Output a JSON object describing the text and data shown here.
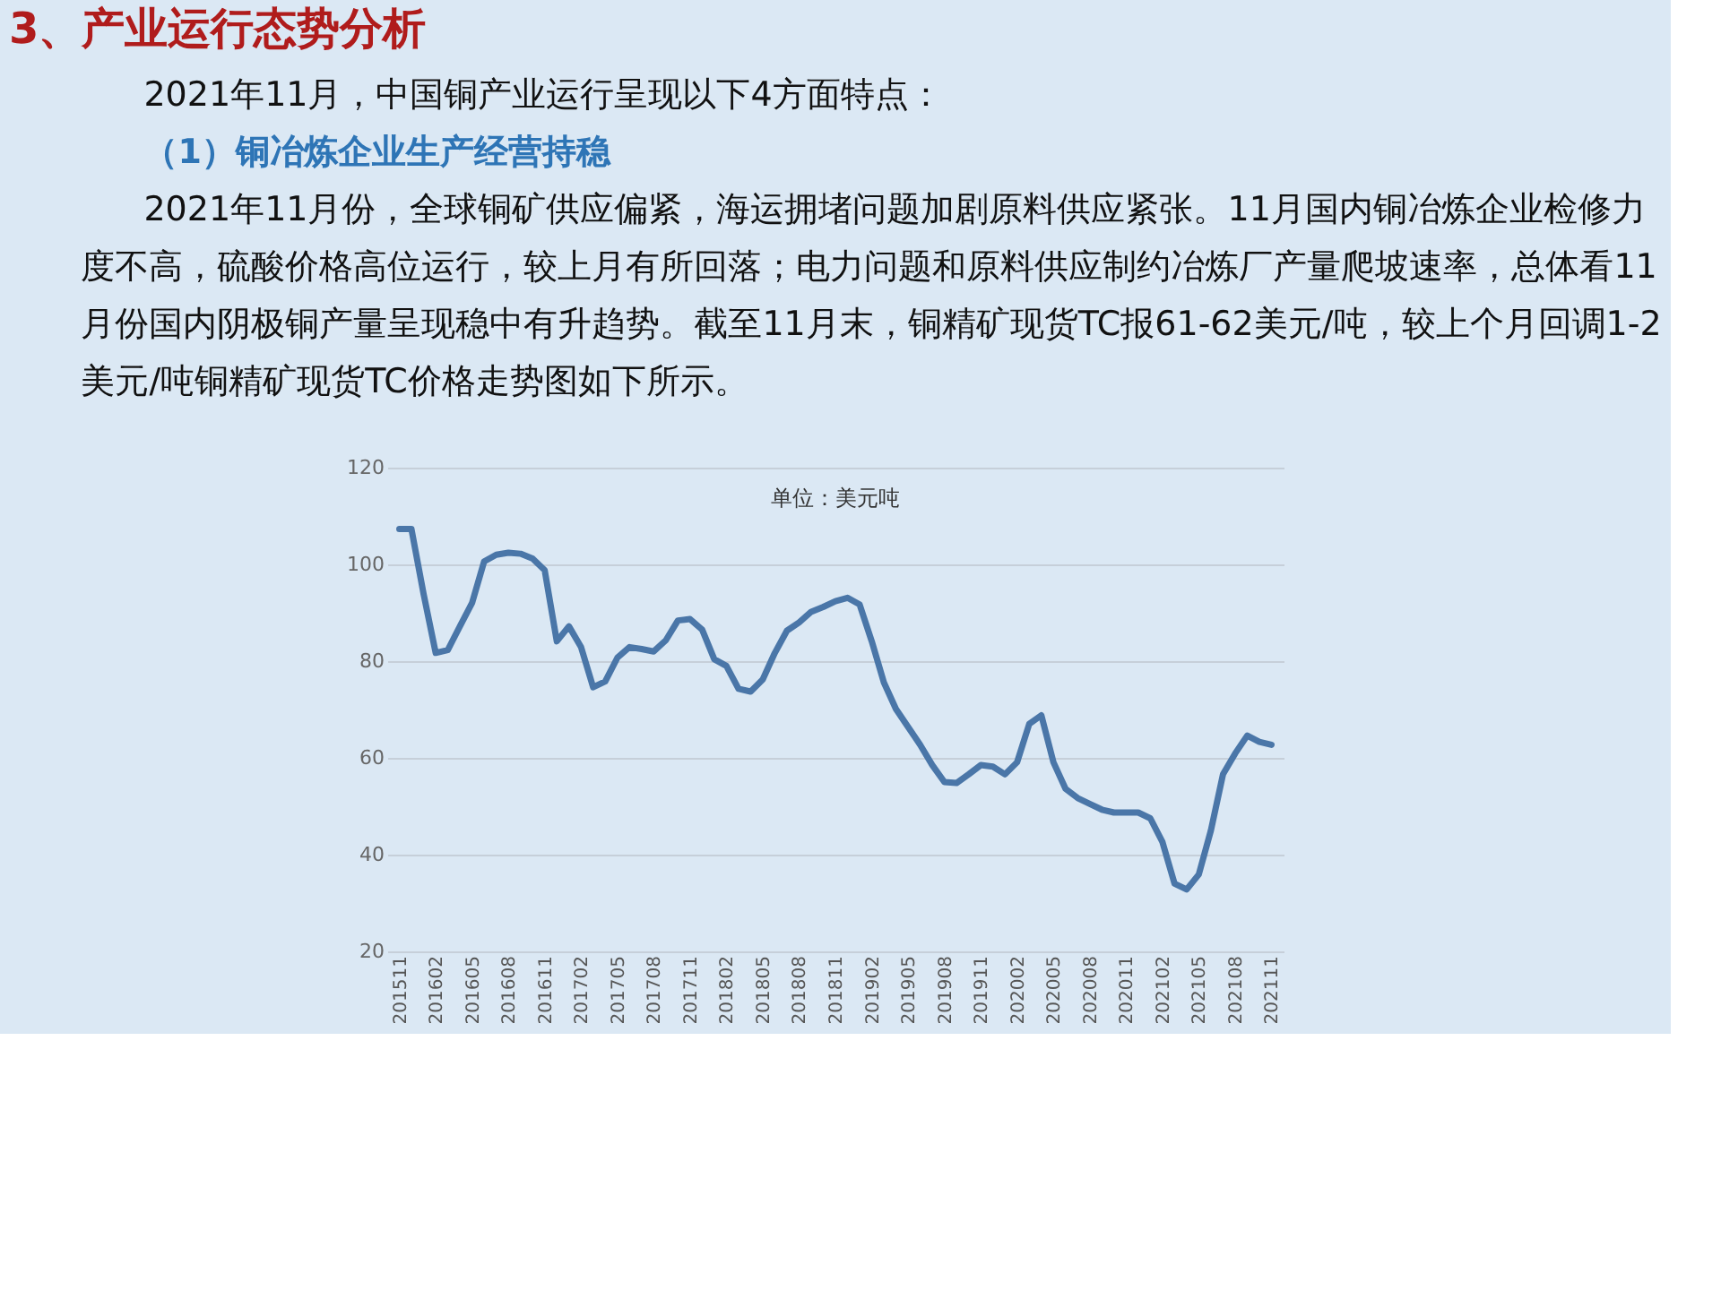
{
  "chart_data": {
    "type": "line",
    "title": "3、产业运行态势分析",
    "subtitle": "单位：美元吨",
    "annotations": [
      "2021年11月，中国铜产业运行呈现以下4方面特点：",
      "（1）铜冶炼企业生产经营持稳",
      "2021年11月份，全球铜矿供应偏紧，海运拥堵问题加剧原料供应紧张。11月国内铜冶炼企业检修力度不高，硫酸价格高位运行，较上月有所回落；电力问题和原料供应制约冶炼厂产量爬坡速率，总体看11月份国内阴极铜产量呈现稳中有升趋势。截至11月末，铜精矿现货TC报61-62美元/吨，较上个月回调1-2美元/吨铜精矿现货TC价格走势图如下所示。"
    ],
    "categories": [
      "201511",
      null,
      null,
      "201602",
      null,
      null,
      "201605",
      null,
      null,
      "201608",
      null,
      null,
      "201611",
      null,
      null,
      "201702",
      null,
      null,
      "201705",
      null,
      null,
      "201708",
      null,
      null,
      "201711",
      null,
      null,
      "201802",
      null,
      null,
      "201805",
      null,
      null,
      "201808",
      null,
      null,
      "201811",
      null,
      null,
      "201902",
      null,
      null,
      "201905",
      null,
      null,
      "201908",
      null,
      null,
      "201911",
      null,
      null,
      "202002",
      null,
      null,
      "202005",
      null,
      null,
      "202008",
      null,
      null,
      "202011",
      null,
      null,
      "202102",
      null,
      null,
      "202105",
      null,
      null,
      "202108",
      null,
      null,
      "202111"
    ],
    "series": [
      {
        "color": "#4a76a8",
        "values": [
          107.3,
          107.3,
          93.9,
          81.7,
          82.3,
          87.2,
          92.0,
          100.6,
          102.0,
          102.4,
          102.2,
          101.2,
          98.8,
          84.1,
          87.2,
          82.9,
          74.6,
          75.8,
          80.7,
          82.9,
          82.5,
          82.0,
          84.3,
          88.4,
          88.7,
          86.5,
          80.4,
          79.0,
          74.3,
          73.7,
          76.2,
          81.7,
          86.3,
          88.0,
          90.2,
          91.2,
          92.4,
          93.1,
          91.7,
          84.1,
          75.6,
          70.1,
          66.4,
          62.7,
          58.5,
          55.0,
          54.8,
          56.6,
          58.5,
          58.2,
          56.6,
          59.1,
          67.0,
          68.8,
          59.1,
          53.6,
          51.7,
          50.5,
          49.3,
          48.7,
          48.7,
          48.7,
          47.5,
          42.6,
          34.0,
          32.8,
          35.9,
          45.0,
          56.6,
          60.9,
          64.6,
          63.3,
          62.7
        ]
      }
    ],
    "ylim": [
      20,
      120
    ],
    "yticks": [
      20,
      40,
      60,
      80,
      100,
      120
    ],
    "grid": "y",
    "legend": false,
    "marker": "none",
    "line_style": "solid"
  }
}
